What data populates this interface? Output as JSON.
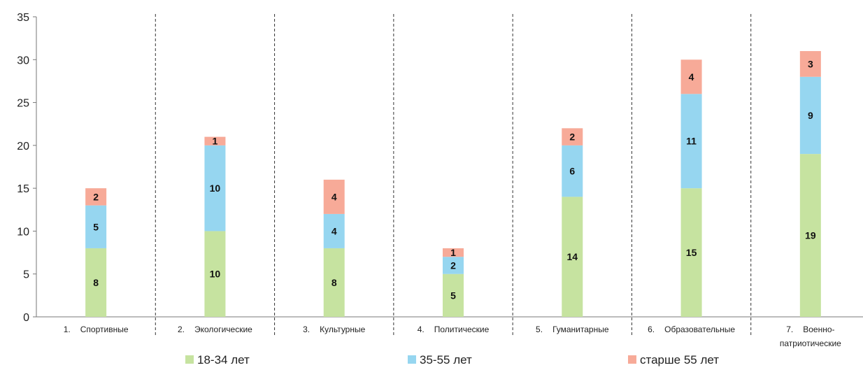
{
  "chart_data": {
    "type": "bar",
    "stacked": true,
    "title": "",
    "xlabel": "",
    "ylabel": "",
    "ylim": [
      0,
      35
    ],
    "yticks": [
      "0",
      "5",
      "10",
      "15",
      "20",
      "25",
      "30",
      "35"
    ],
    "grid": false,
    "legend_position": "bottom",
    "categories": [
      {
        "number": "1.",
        "label": "Спортивные"
      },
      {
        "number": "2.",
        "label": "Экологические"
      },
      {
        "number": "3.",
        "label": "Культурные"
      },
      {
        "number": "4.",
        "label": "Политические"
      },
      {
        "number": "5.",
        "label": "Гуманитарные"
      },
      {
        "number": "6.",
        "label": "Образовательные"
      },
      {
        "number": "7.",
        "label": "Военно-патриотические",
        "lines": [
          "Военно-",
          "патриотические"
        ]
      }
    ],
    "series": [
      {
        "name": "18-34  лет",
        "color": "#c6e3a0",
        "values": [
          8,
          10,
          8,
          5,
          14,
          15,
          19
        ]
      },
      {
        "name": "35-55 лет",
        "color": "#96d6f0",
        "values": [
          5,
          10,
          4,
          2,
          6,
          11,
          9
        ]
      },
      {
        "name": "старше 55 лет",
        "color": "#f7aa98",
        "values": [
          2,
          1,
          4,
          1,
          2,
          4,
          3
        ]
      }
    ]
  }
}
